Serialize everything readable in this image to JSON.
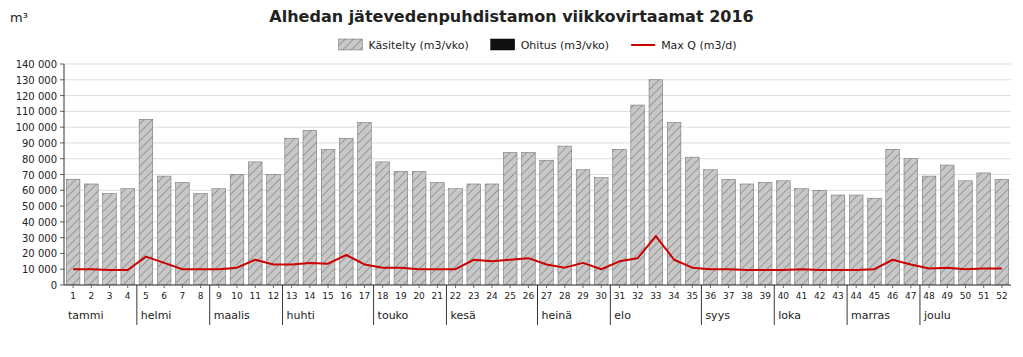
{
  "chart_data": {
    "type": "bar",
    "title": "Alhedan jätevedenpuhdistamon  viikkovirtaamat 2016",
    "y_label": "m³",
    "categories": [
      "1",
      "2",
      "3",
      "4",
      "5",
      "6",
      "7",
      "8",
      "9",
      "10",
      "11",
      "12",
      "13",
      "14",
      "15",
      "16",
      "17",
      "18",
      "19",
      "20",
      "21",
      "22",
      "23",
      "24",
      "25",
      "26",
      "27",
      "28",
      "29",
      "30",
      "31",
      "32",
      "33",
      "34",
      "35",
      "36",
      "37",
      "38",
      "39",
      "40",
      "41",
      "42",
      "43",
      "44",
      "45",
      "46",
      "47",
      "48",
      "49",
      "50",
      "51",
      "52"
    ],
    "series": [
      {
        "name": "Käsitelty (m3/vko)",
        "type": "bar",
        "color": "#c8c8c8",
        "values": [
          67000,
          64000,
          58000,
          61000,
          105000,
          69000,
          65000,
          58000,
          61000,
          70000,
          78000,
          70000,
          93000,
          98000,
          86000,
          93000,
          103000,
          78000,
          72000,
          72000,
          65000,
          61000,
          64000,
          64000,
          84000,
          84000,
          79000,
          88000,
          73000,
          68000,
          86000,
          114000,
          130000,
          103000,
          81000,
          73000,
          67000,
          64000,
          65000,
          66000,
          61000,
          60000,
          57000,
          57000,
          55000,
          86000,
          80000,
          69000,
          76000,
          66000,
          71000,
          67000
        ]
      },
      {
        "name": "Ohitus (m3/vko)",
        "type": "bar",
        "color": "#111111",
        "values": [
          0,
          0,
          0,
          0,
          0,
          0,
          0,
          0,
          0,
          0,
          0,
          0,
          0,
          0,
          0,
          0,
          0,
          0,
          0,
          0,
          0,
          0,
          0,
          0,
          0,
          0,
          0,
          0,
          0,
          0,
          0,
          0,
          0,
          0,
          0,
          0,
          0,
          0,
          0,
          0,
          0,
          0,
          0,
          0,
          0,
          0,
          0,
          0,
          0,
          0,
          0,
          0
        ]
      },
      {
        "name": "Max Q (m3/d)",
        "type": "line",
        "color": "#cc0000",
        "values": [
          10000,
          10000,
          9500,
          9500,
          18000,
          14000,
          10000,
          10000,
          10000,
          11000,
          16000,
          13000,
          13000,
          14000,
          13500,
          19000,
          13000,
          11000,
          11000,
          10000,
          10000,
          10000,
          16000,
          15000,
          16000,
          17000,
          13000,
          11000,
          14000,
          10000,
          15000,
          17000,
          31000,
          16000,
          11000,
          10000,
          10000,
          9500,
          9500,
          9500,
          10000,
          9500,
          9500,
          9500,
          10000,
          16000,
          13000,
          10500,
          11000,
          10000,
          10500,
          10500
        ]
      }
    ],
    "annotations": [
      {
        "text": "tammi",
        "x": "1"
      },
      {
        "text": "helmi",
        "x": "5"
      },
      {
        "text": "maalis",
        "x": "9"
      },
      {
        "text": "huhti",
        "x": "13"
      },
      {
        "text": "touko",
        "x": "18"
      },
      {
        "text": "kesä",
        "x": "22"
      },
      {
        "text": "heinä",
        "x": "27"
      },
      {
        "text": "elo",
        "x": "31"
      },
      {
        "text": "syys",
        "x": "36"
      },
      {
        "text": "loka",
        "x": "40"
      },
      {
        "text": "marras",
        "x": "44"
      },
      {
        "text": "joulu",
        "x": "48"
      }
    ],
    "ylim": [
      0,
      140000
    ],
    "yticks": [
      0,
      {
        "value": 10000,
        "label": "10 000"
      },
      {
        "value": 20000,
        "label": "20 000"
      },
      {
        "value": 30000,
        "label": "30 000"
      },
      {
        "value": 40000,
        "label": "40 000"
      },
      {
        "value": 50000,
        "label": "50 000"
      },
      {
        "value": 60000,
        "label": "60 000"
      },
      {
        "value": 70000,
        "label": "70 000"
      },
      {
        "value": 80000,
        "label": "80 000"
      },
      {
        "value": 90000,
        "label": "90 000"
      },
      {
        "value": 100000,
        "label": "100 000"
      },
      {
        "value": 110000,
        "label": "110 000"
      },
      {
        "value": 120000,
        "label": "120 000"
      },
      {
        "value": 130000,
        "label": "130 000"
      },
      {
        "value": 140000,
        "label": "140 000"
      }
    ],
    "grid": true,
    "legend": "top"
  }
}
